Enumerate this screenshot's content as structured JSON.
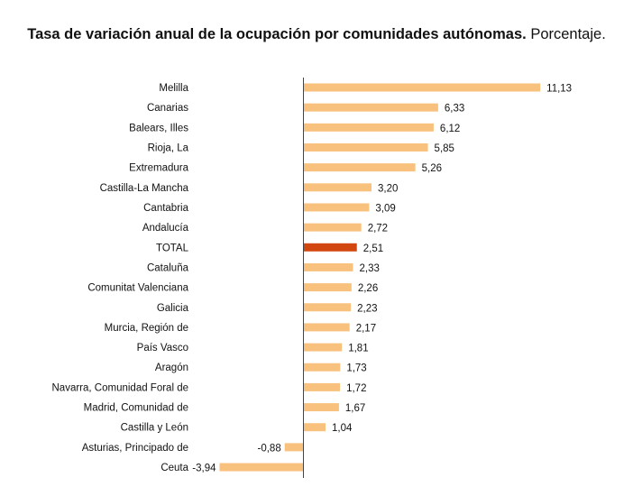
{
  "chart_data": {
    "type": "bar",
    "orientation": "horizontal",
    "title": "Tasa de variación anual de la ocupación por comunidades autónomas.",
    "subtitle": "Porcentaje.",
    "categories": [
      "Melilla",
      "Canarias",
      "Balears, Illes",
      "Rioja, La",
      "Extremadura",
      "Castilla-La Mancha",
      "Cantabria",
      "Andalucía",
      "TOTAL",
      "Cataluña",
      "Comunitat Valenciana",
      "Galicia",
      "Murcia, Región de",
      "País Vasco",
      "Aragón",
      "Navarra, Comunidad Foral de",
      "Madrid, Comunidad de",
      "Castilla y León",
      "Asturias, Principado de",
      "Ceuta"
    ],
    "values": [
      11.13,
      6.33,
      6.12,
      5.85,
      5.26,
      3.2,
      3.09,
      2.72,
      2.51,
      2.33,
      2.26,
      2.23,
      2.17,
      1.81,
      1.73,
      1.72,
      1.67,
      1.04,
      -0.88,
      -3.94
    ],
    "value_labels": [
      "11,13",
      "6,33",
      "6,12",
      "5,85",
      "5,26",
      "3,20",
      "3,09",
      "2,72",
      "2,51",
      "2,33",
      "2,26",
      "2,23",
      "2,17",
      "1,81",
      "1,73",
      "1,72",
      "1,67",
      "1,04",
      "-0,88",
      "-3,94"
    ],
    "highlight_category": "TOTAL",
    "xlim": [
      -3.94,
      11.13
    ],
    "grid": false,
    "legend": "none",
    "colors": {
      "bar": "#f8c27e",
      "highlight": "#d2470f",
      "axis": "#444444"
    }
  }
}
